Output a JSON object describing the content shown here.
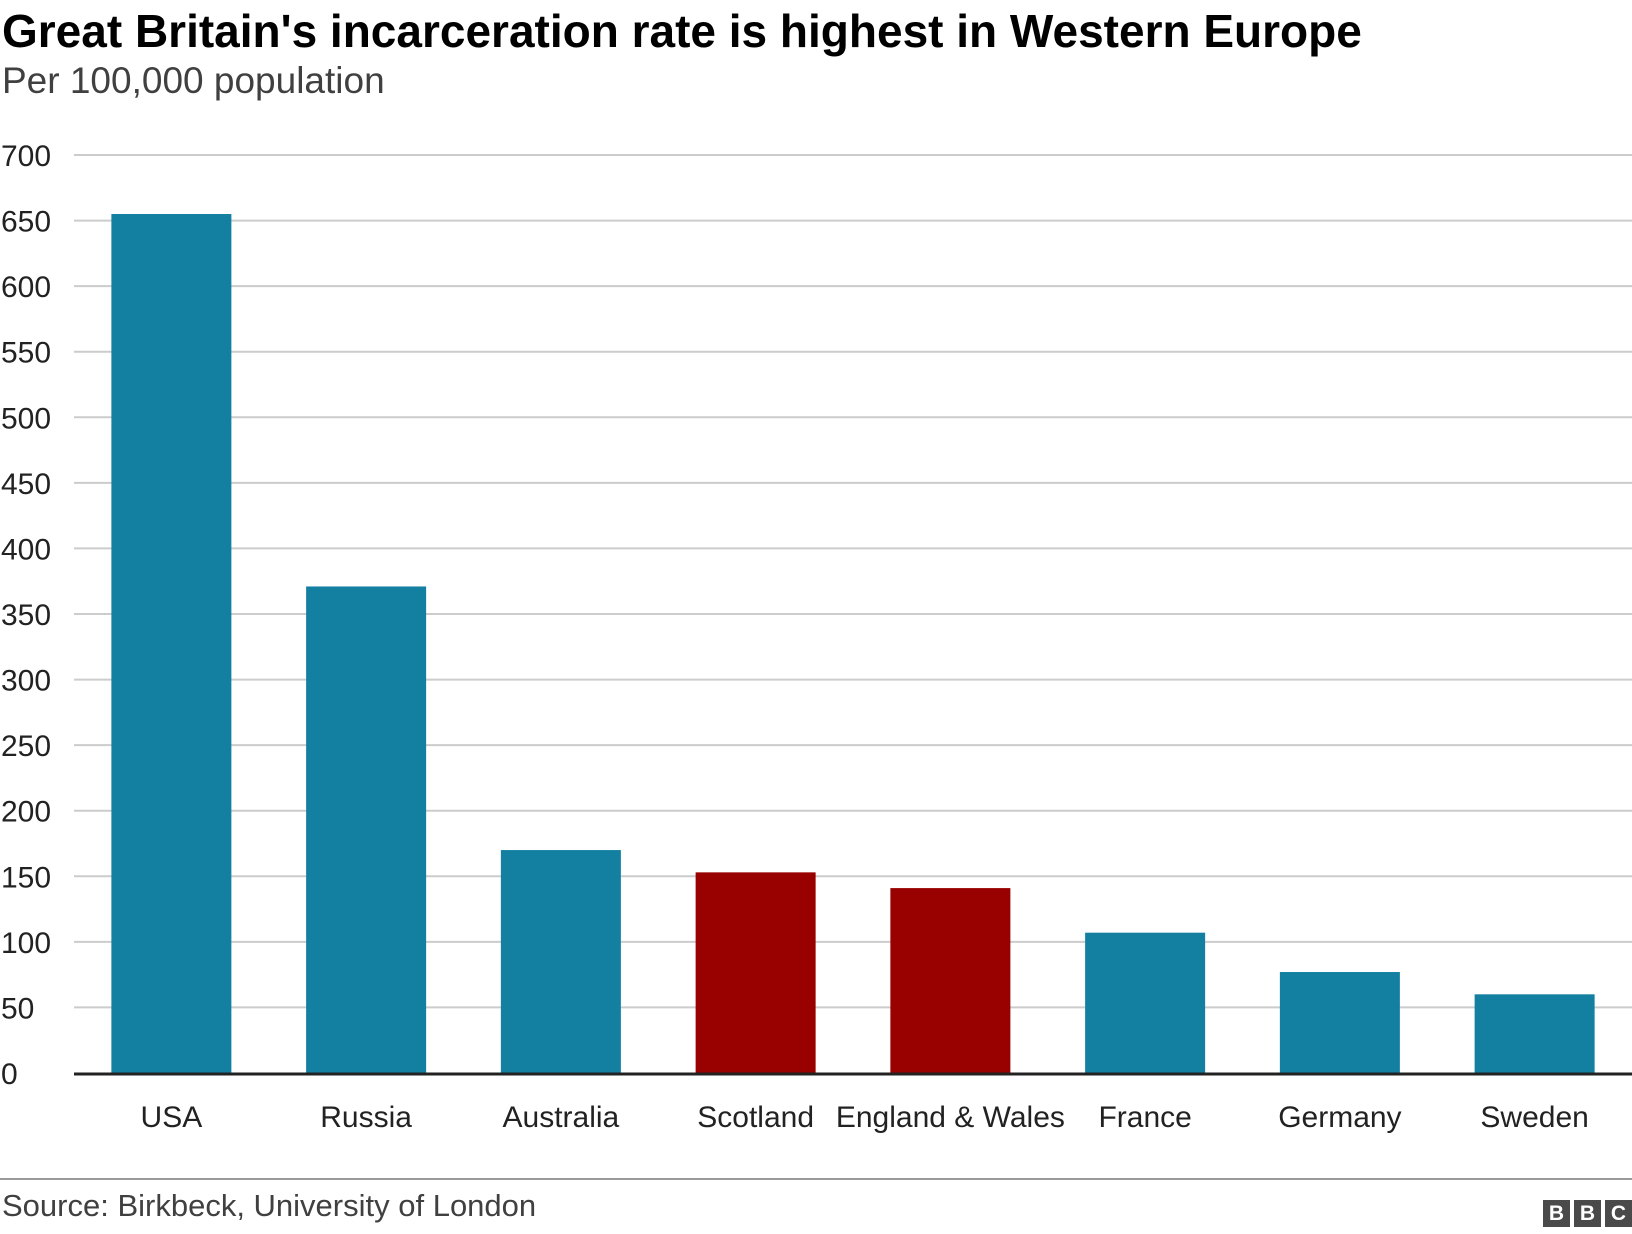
{
  "header": {
    "title": "Great Britain's incarceration rate is highest in Western Europe",
    "subtitle": "Per 100,000 population"
  },
  "footer": {
    "source": "Source: Birkbeck, University of London",
    "logo_letters": [
      "B",
      "B",
      "C"
    ]
  },
  "colors": {
    "default_bar": "#1380a1",
    "highlight_bar": "#990000",
    "grid": "#cccccc",
    "axis": "#222222"
  },
  "chart_data": {
    "type": "bar",
    "categories": [
      "USA",
      "Russia",
      "Australia",
      "Scotland",
      "England & Wales",
      "France",
      "Germany",
      "Sweden"
    ],
    "values": [
      655,
      371,
      170,
      153,
      141,
      107,
      77,
      60
    ],
    "highlight": [
      false,
      false,
      false,
      true,
      true,
      false,
      false,
      false
    ],
    "title": "Great Britain's incarceration rate is highest in Western Europe",
    "subtitle": "Per 100,000 population",
    "xlabel": "",
    "ylabel": "",
    "ylim": [
      0,
      700
    ],
    "yticks": [
      0,
      50,
      100,
      150,
      200,
      250,
      300,
      350,
      400,
      450,
      500,
      550,
      600,
      650,
      700
    ],
    "grid": true
  }
}
